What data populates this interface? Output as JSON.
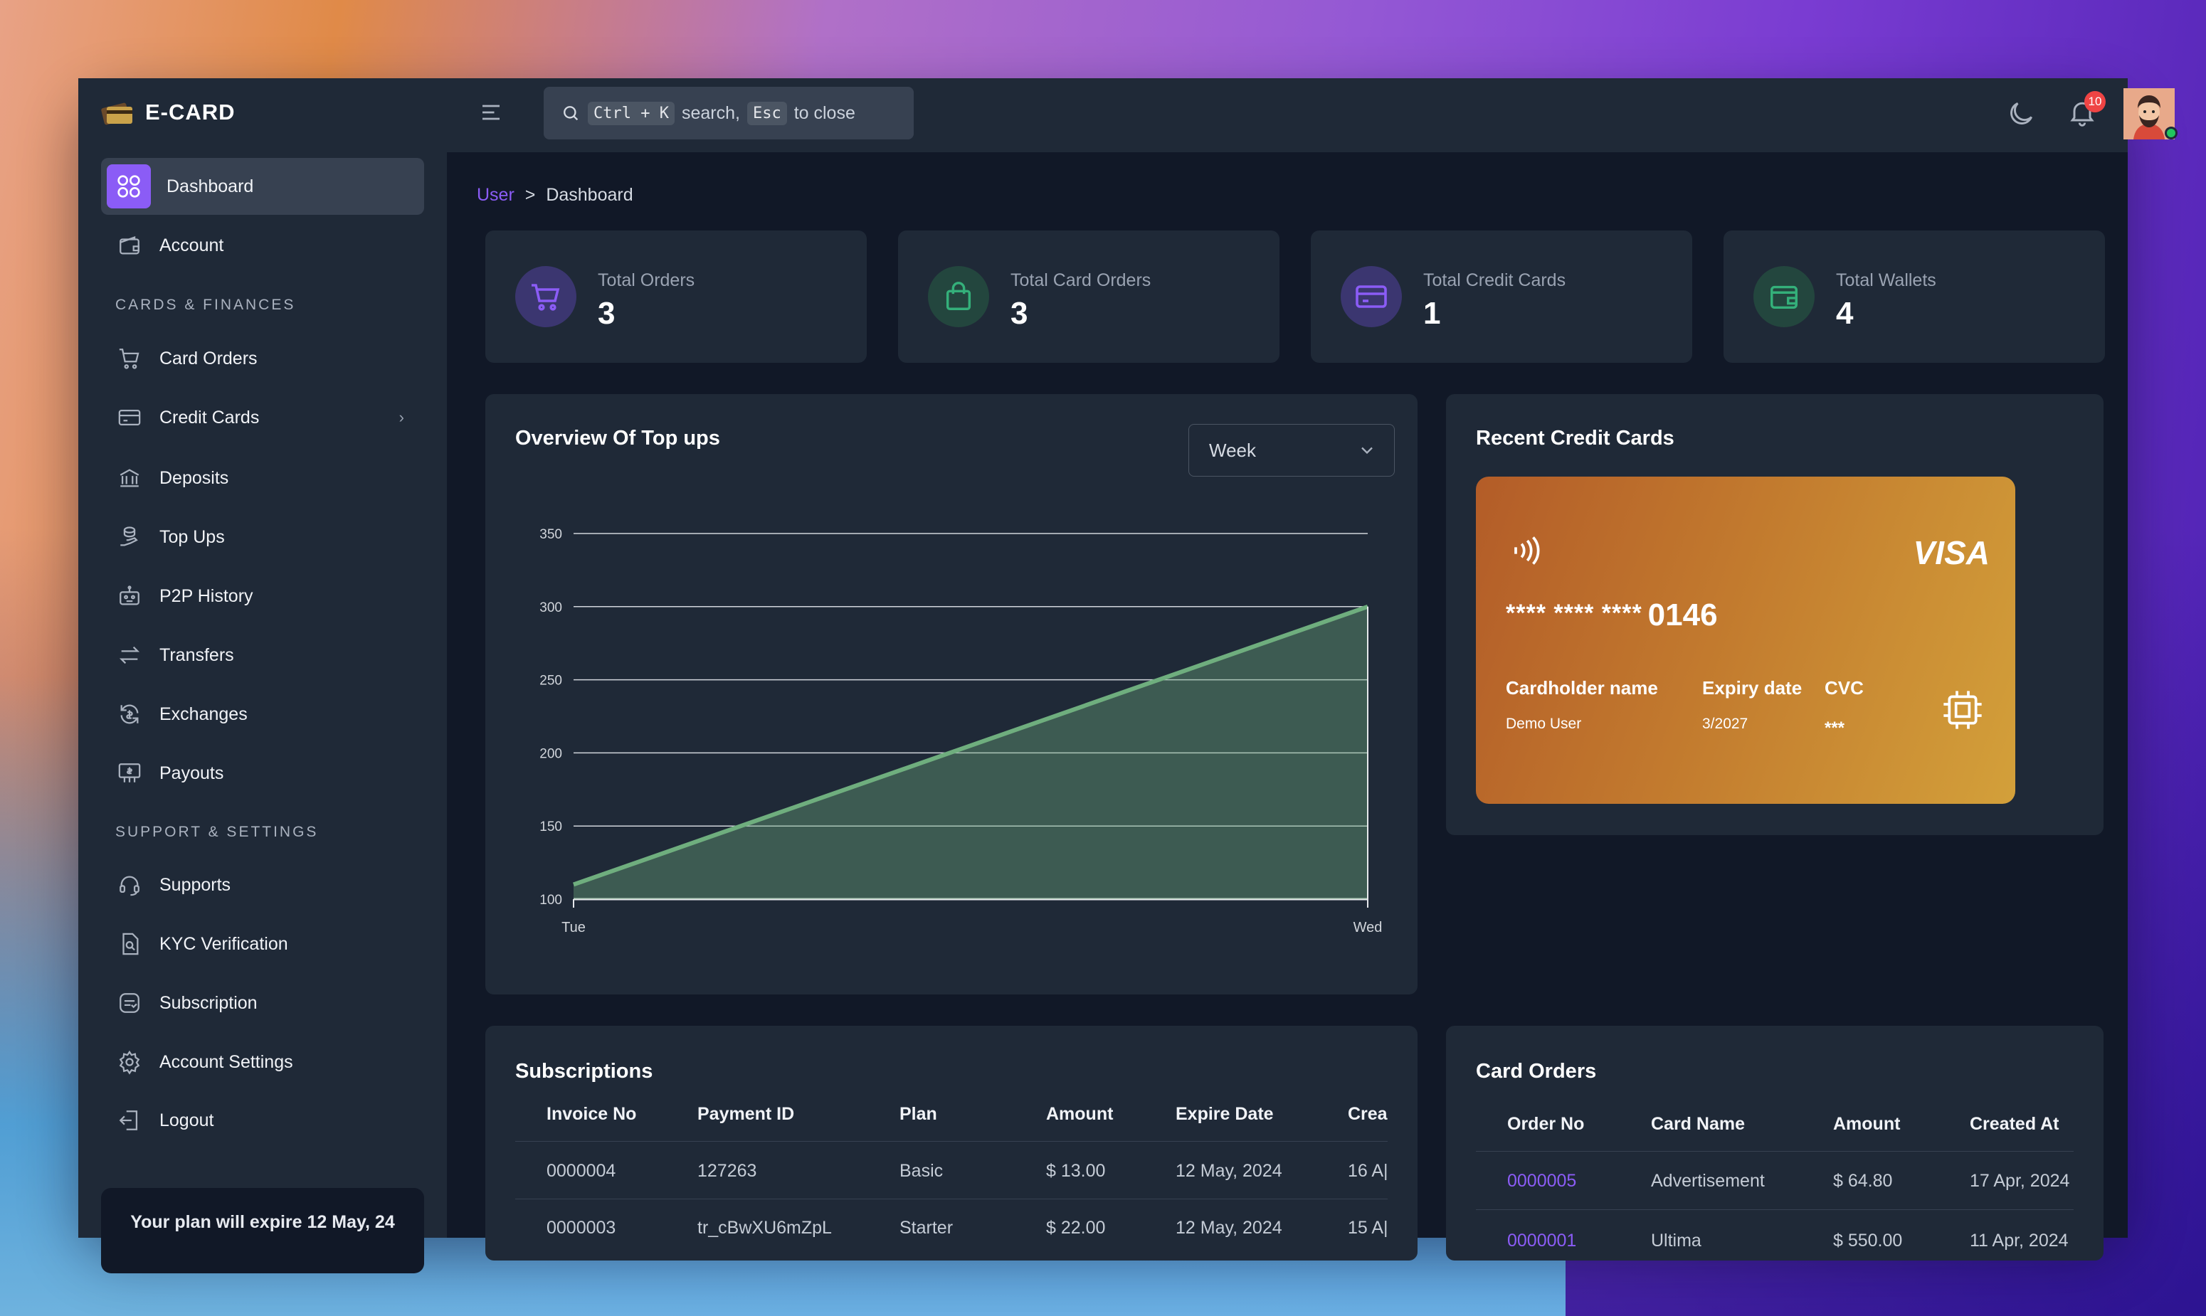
{
  "app": {
    "name": "E-CARD"
  },
  "search": {
    "kbd1": "Ctrl + K",
    "text1": "search,",
    "kbd2": "Esc",
    "text2": "to close"
  },
  "notifications": {
    "count": "10"
  },
  "sidebar": {
    "items_top": [
      {
        "label": "Dashboard",
        "icon": "grid-icon"
      },
      {
        "label": "Account",
        "icon": "wallet-icon"
      }
    ],
    "section1": "CARDS & FINANCES",
    "items_cards": [
      {
        "label": "Card Orders",
        "icon": "cart-icon"
      },
      {
        "label": "Credit Cards",
        "icon": "credit-card-icon"
      },
      {
        "label": "Deposits",
        "icon": "bank-icon"
      },
      {
        "label": "Top Ups",
        "icon": "coins-hand-icon"
      },
      {
        "label": "P2P History",
        "icon": "robot-icon"
      },
      {
        "label": "Transfers",
        "icon": "arrows-swap-icon"
      },
      {
        "label": "Exchanges",
        "icon": "exchange-icon"
      },
      {
        "label": "Payouts",
        "icon": "payout-icon"
      }
    ],
    "section2": "SUPPORT & SETTINGS",
    "items_support": [
      {
        "label": "Supports",
        "icon": "headset-icon"
      },
      {
        "label": "KYC Verification",
        "icon": "document-search-icon"
      },
      {
        "label": "Subscription",
        "icon": "subscription-icon"
      },
      {
        "label": "Account Settings",
        "icon": "gear-icon"
      },
      {
        "label": "Logout",
        "icon": "logout-icon"
      }
    ],
    "plan_notice": "Your plan will expire 12 May, 24"
  },
  "breadcrumb": {
    "root": "User",
    "sep": ">",
    "current": "Dashboard"
  },
  "stats": [
    {
      "label": "Total Orders",
      "value": "3",
      "icon": "cart-icon",
      "color": "#8b5cf6"
    },
    {
      "label": "Total Card Orders",
      "value": "3",
      "icon": "shopping-bag-icon",
      "color": "#34b07a"
    },
    {
      "label": "Total Credit Cards",
      "value": "1",
      "icon": "credit-card-icon",
      "color": "#8b5cf6"
    },
    {
      "label": "Total Wallets",
      "value": "4",
      "icon": "wallet-icon",
      "color": "#34b07a"
    }
  ],
  "overview": {
    "title": "Overview Of Top ups",
    "period": "Week"
  },
  "chart_data": {
    "type": "area",
    "title": "",
    "categories": [
      "Tue",
      "Wed"
    ],
    "values": [
      110,
      300
    ],
    "ylim": [
      100,
      350
    ],
    "yticks": [
      "100",
      "150",
      "200",
      "250",
      "300",
      "350"
    ],
    "grid": true,
    "color": "#6fae7e"
  },
  "recent_cards": {
    "title": "Recent Credit Cards",
    "masked": "**** **** ****",
    "last4": "0146",
    "brand": "VISA",
    "holder_label": "Cardholder name",
    "holder": "Demo User",
    "expiry_label": "Expiry date",
    "expiry": "3/2027",
    "cvc_label": "CVC",
    "cvc": "***"
  },
  "subscriptions": {
    "title": "Subscriptions",
    "columns": [
      "Invoice No",
      "Payment ID",
      "Plan",
      "Amount",
      "Expire Date",
      "Crea"
    ],
    "rows": [
      [
        "0000004",
        "127263",
        "Basic",
        "$ 13.00",
        "12 May, 2024",
        "16 A|"
      ],
      [
        "0000003",
        "tr_cBwXU6mZpL",
        "Starter",
        "$ 22.00",
        "12 May, 2024",
        "15 A|"
      ]
    ]
  },
  "card_orders": {
    "title": "Card Orders",
    "columns": [
      "Order No",
      "Card Name",
      "Amount",
      "Created At"
    ],
    "rows": [
      [
        "0000005",
        "Advertisement",
        "$ 64.80",
        "17 Apr, 2024"
      ],
      [
        "0000001",
        "Ultima",
        "$ 550.00",
        "11 Apr, 2024"
      ]
    ]
  }
}
